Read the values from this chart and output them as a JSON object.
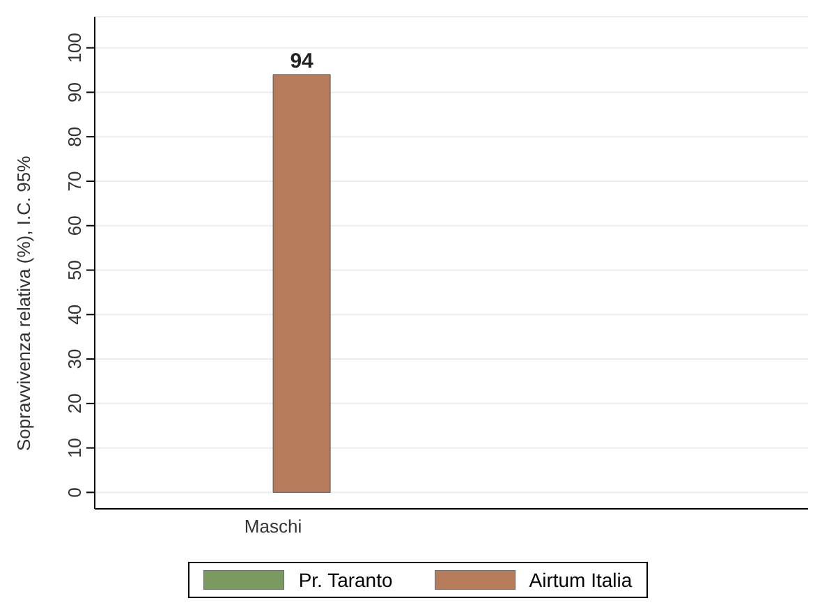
{
  "chart_data": {
    "type": "bar",
    "ylabel": "Sopravvivenza relativa (%), I.C. 95%",
    "categories": [
      "Maschi",
      null
    ],
    "series": [
      {
        "name": "Pr. Taranto",
        "color": "#7b9a62",
        "values": [
          null,
          null
        ]
      },
      {
        "name": "Airtum Italia",
        "color": "#b67c5c",
        "values": [
          94,
          null
        ]
      }
    ],
    "ylim": [
      -3.7,
      107
    ],
    "yticks": [
      0,
      10,
      20,
      30,
      40,
      50,
      60,
      70,
      80,
      90,
      100
    ],
    "grid": "y",
    "legend": "bottom",
    "data_labels": true
  }
}
